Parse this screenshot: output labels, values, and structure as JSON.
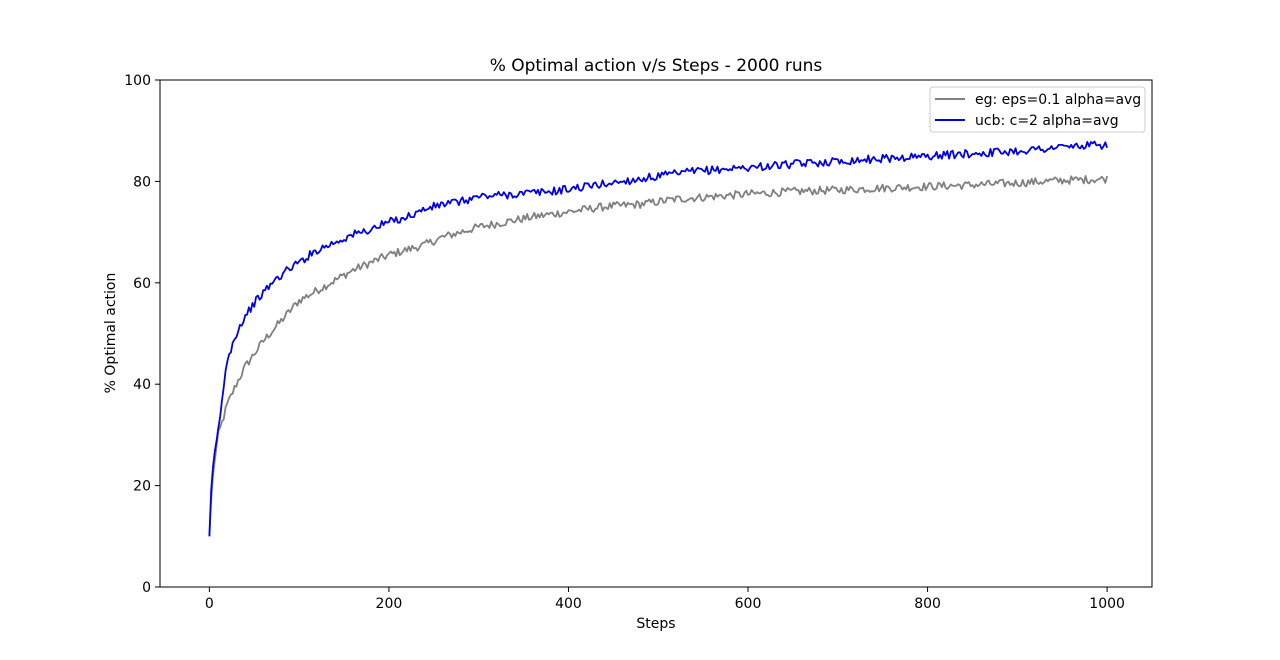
{
  "chart_data": {
    "type": "line",
    "title": "% Optimal action v/s Steps - 2000 runs",
    "xlabel": "Steps",
    "ylabel": "% Optimal action",
    "xlim": [
      -55,
      1050
    ],
    "ylim": [
      0,
      100
    ],
    "xticks": [
      0,
      200,
      400,
      600,
      800,
      1000
    ],
    "yticks": [
      0,
      20,
      40,
      60,
      80,
      100
    ],
    "grid": false,
    "legend_position": "top-right",
    "series": [
      {
        "name": "eg: eps=0.1 alpha=avg",
        "color": "#808080",
        "x": [
          0,
          2,
          5,
          10,
          15,
          20,
          30,
          40,
          50,
          60,
          70,
          80,
          90,
          100,
          120,
          140,
          160,
          180,
          200,
          220,
          240,
          260,
          280,
          300,
          330,
          360,
          400,
          440,
          480,
          520,
          560,
          600,
          650,
          700,
          750,
          800,
          850,
          900,
          950,
          1000
        ],
        "y": [
          10,
          17,
          24,
          30,
          33,
          36,
          40,
          43.5,
          46,
          48.5,
          50.5,
          52.5,
          54.5,
          56.5,
          58.5,
          60.5,
          62.5,
          64,
          65.5,
          66.5,
          67.5,
          69,
          70,
          71,
          72,
          73,
          74,
          75,
          75.5,
          76.5,
          77,
          77.5,
          78,
          78.3,
          78.7,
          79,
          79.3,
          79.7,
          80.2,
          80.5
        ]
      },
      {
        "name": "ucb: c=2 alpha=avg",
        "color": "#0000e6",
        "x": [
          0,
          2,
          5,
          10,
          15,
          20,
          25,
          30,
          40,
          50,
          60,
          70,
          80,
          90,
          100,
          120,
          140,
          160,
          180,
          200,
          220,
          240,
          260,
          280,
          300,
          340,
          380,
          420,
          460,
          500,
          540,
          580,
          620,
          660,
          700,
          750,
          800,
          850,
          900,
          950,
          1000
        ],
        "y": [
          10,
          19,
          25,
          31,
          38,
          45,
          47.5,
          50,
          53.5,
          56,
          58,
          60,
          61.5,
          63,
          64,
          66.5,
          68,
          69.5,
          70.5,
          72,
          73,
          74.5,
          75.5,
          76,
          77,
          77.5,
          78,
          79,
          80,
          81,
          82,
          82.5,
          83,
          83.5,
          84,
          84.5,
          85,
          85.5,
          86,
          86.8,
          87.2
        ]
      }
    ]
  }
}
